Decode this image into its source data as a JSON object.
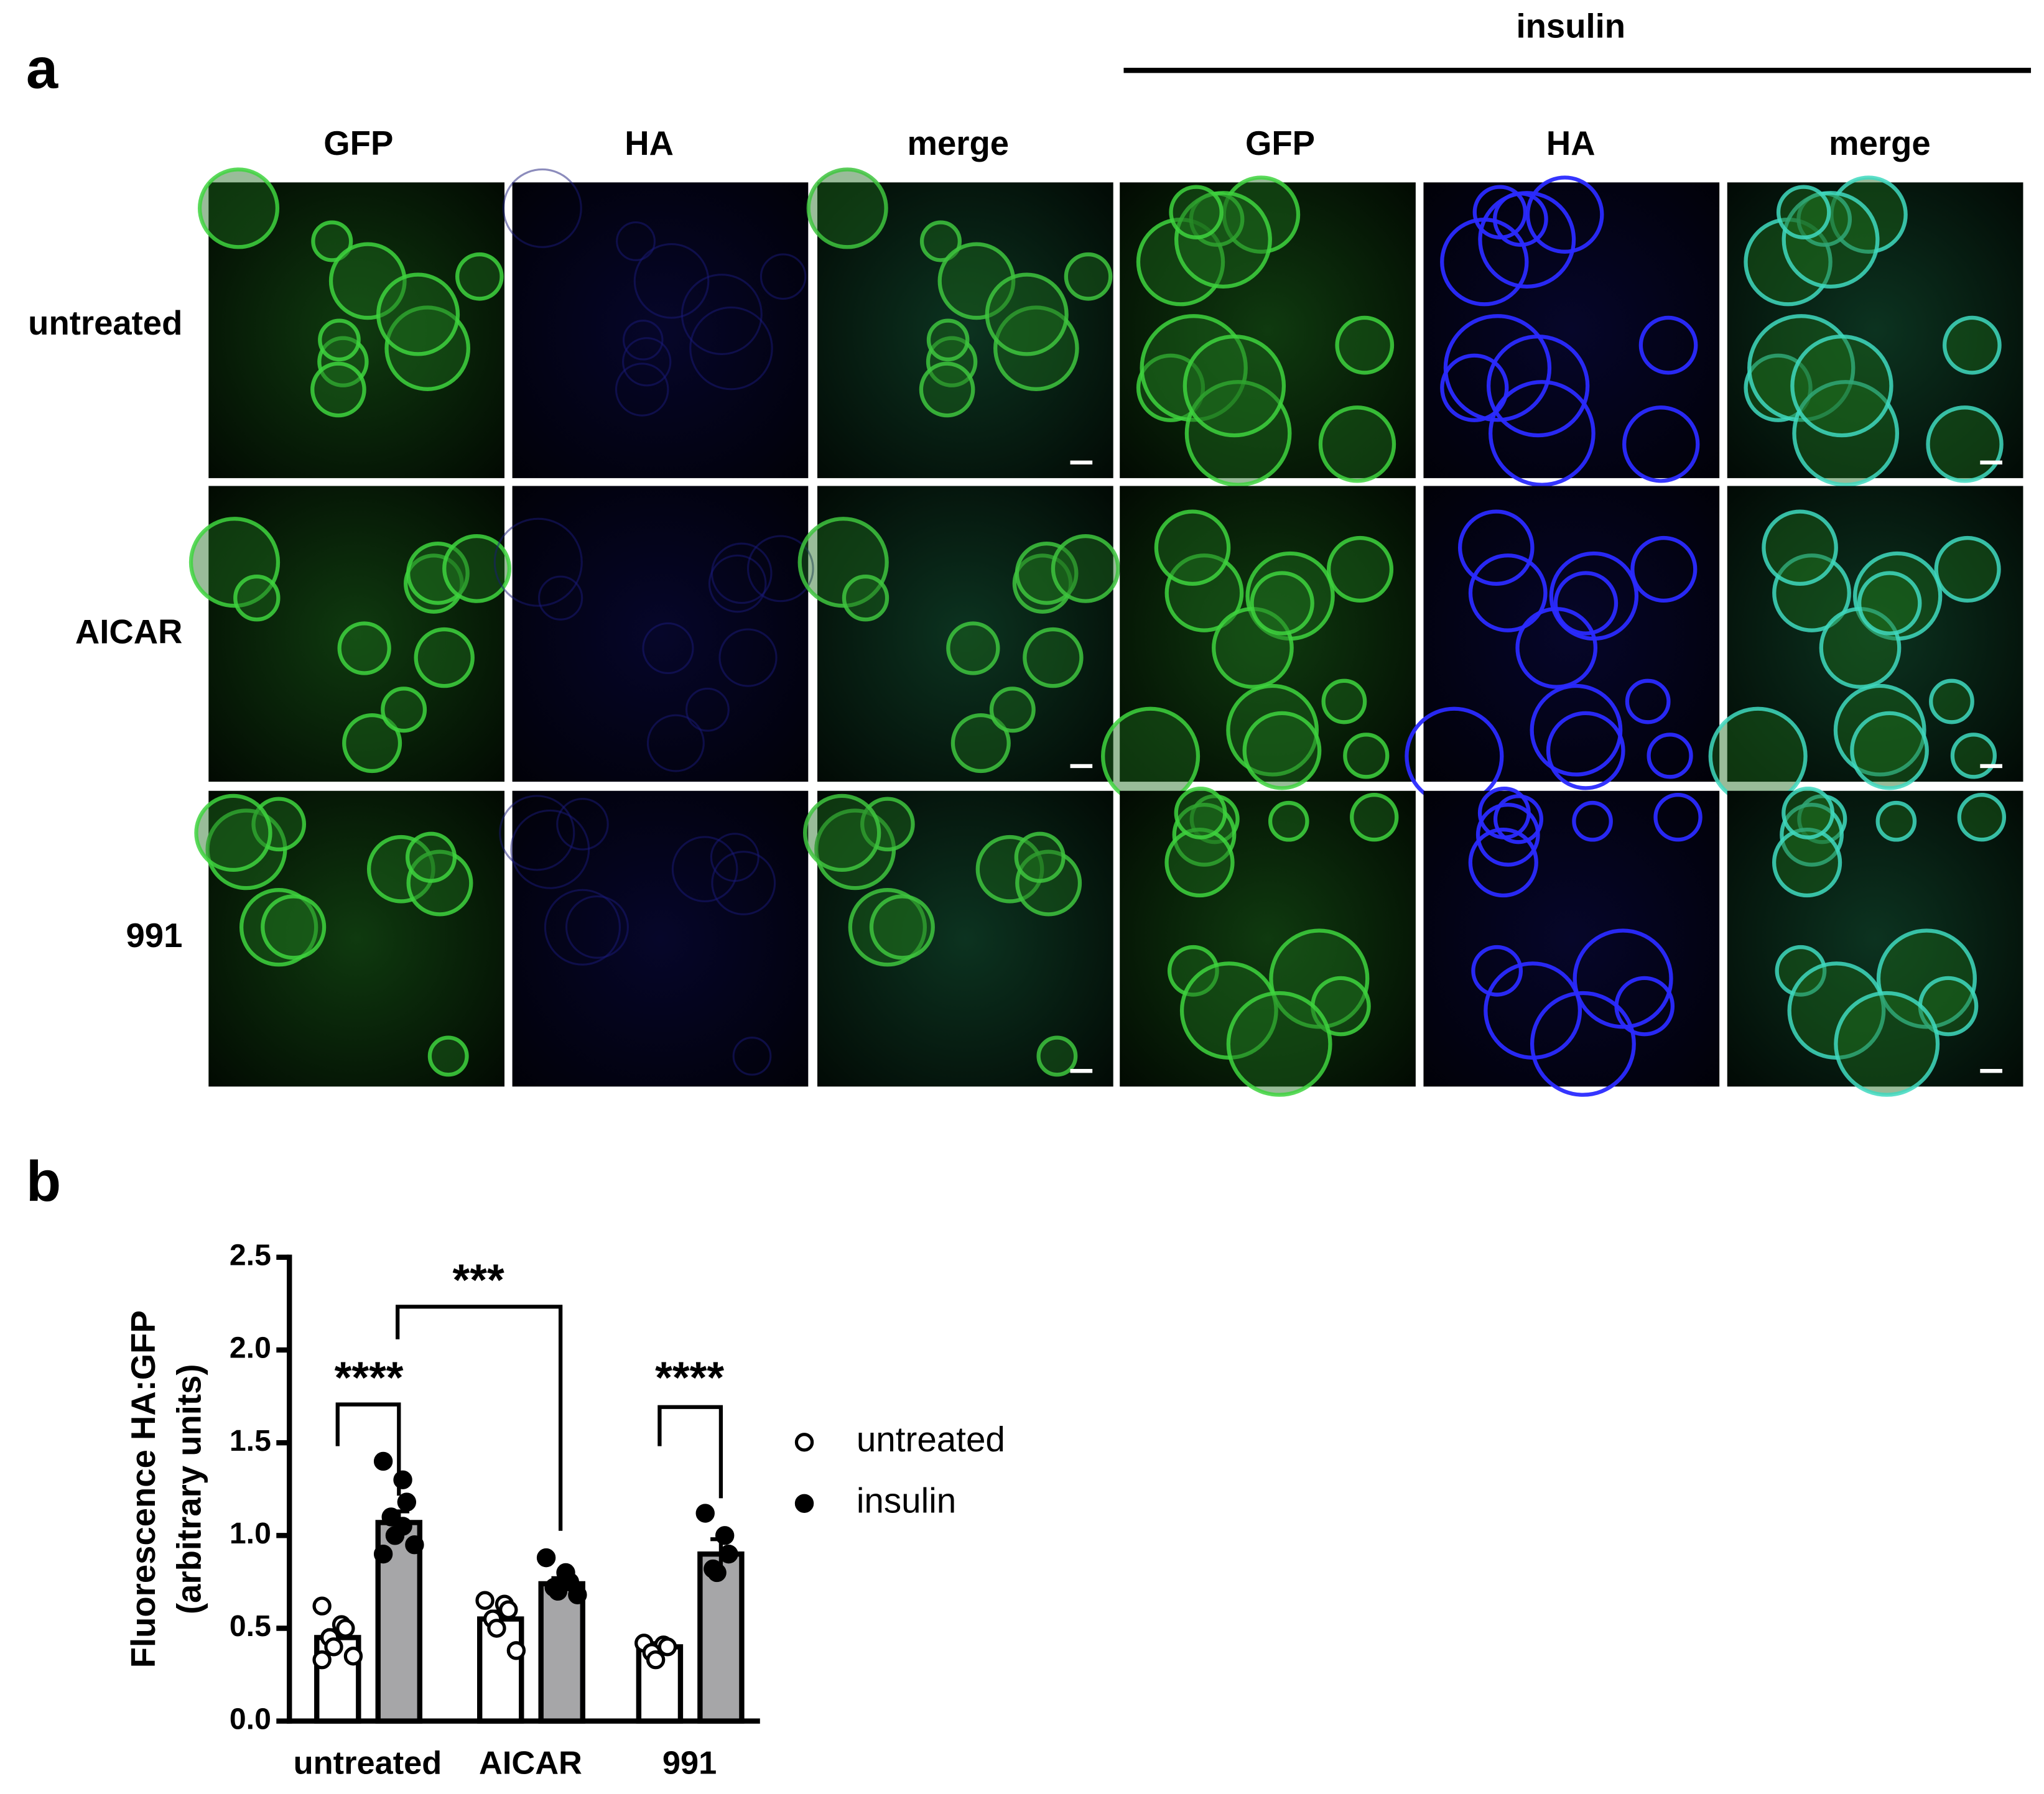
{
  "panel_a": {
    "label": "a",
    "group_label": "insulin",
    "columns": [
      "GFP",
      "HA",
      "merge",
      "GFP",
      "HA",
      "merge"
    ],
    "rows": [
      "untreated",
      "AICAR",
      "991"
    ]
  },
  "panel_b": {
    "label": "b",
    "chart_data": {
      "type": "bar",
      "y_label": [
        "Fluorescence HA:GFP",
        "(arbitrary units)"
      ],
      "categories": [
        "untreated",
        "AICAR",
        "991"
      ],
      "series": [
        {
          "name": "untreated",
          "color": "#ffffff",
          "marker": "open",
          "values": [
            0.45,
            0.55,
            0.4
          ],
          "errors": [
            0.04,
            0.04,
            0.02
          ],
          "points": [
            [
              0.62,
              0.52,
              0.5,
              0.45,
              0.4,
              0.35,
              0.33
            ],
            [
              0.65,
              0.63,
              0.6,
              0.55,
              0.5,
              0.38
            ],
            [
              0.42,
              0.41,
              0.4,
              0.37,
              0.33
            ]
          ]
        },
        {
          "name": "insulin",
          "color": "#a6a6a8",
          "marker": "filled",
          "values": [
            1.07,
            0.74,
            0.9
          ],
          "errors": [
            0.06,
            0.03,
            0.08
          ],
          "points": [
            [
              1.4,
              1.3,
              1.18,
              1.1,
              1.0,
              0.95,
              0.9,
              1.05
            ],
            [
              0.88,
              0.8,
              0.75,
              0.72,
              0.7,
              0.68
            ],
            [
              1.12,
              1.0,
              0.9,
              0.82,
              0.8
            ]
          ]
        }
      ],
      "ylim": [
        0,
        2.5
      ],
      "yticks": [
        {
          "value": 0,
          "label": "0.0"
        },
        {
          "value": 0.5,
          "label": "0.5"
        },
        {
          "value": 1,
          "label": "1.0"
        },
        {
          "value": 1.5,
          "label": "1.5"
        },
        {
          "value": 2,
          "label": "2.0"
        },
        {
          "value": 2.5,
          "label": "2.5"
        }
      ],
      "annotations": [
        "****",
        "***",
        "****"
      ]
    }
  }
}
